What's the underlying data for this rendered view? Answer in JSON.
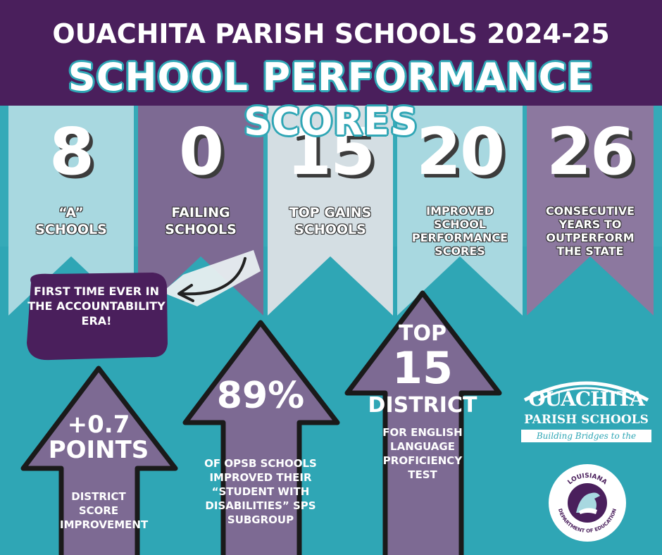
{
  "header": {
    "line1": "OUACHITA PARISH SCHOOLS 2024-25",
    "line2": "SCHOOL PERFORMANCE SCORES"
  },
  "banners": [
    {
      "number": "8",
      "label": "“A” SCHOOLS",
      "color": "#a8d8e0"
    },
    {
      "number": "0",
      "label": "FAILING SCHOOLS",
      "color": "#7d6a93"
    },
    {
      "number": "15",
      "label": "TOP GAINS SCHOOLS",
      "color": "#d4dee3"
    },
    {
      "number": "20",
      "label": "IMPROVED SCHOOL PERFORMANCE SCORES",
      "color": "#a8d8e0"
    },
    {
      "number": "26",
      "label": "CONSECUTIVE YEARS TO OUTPERFORM THE STATE",
      "color": "#8c789f"
    }
  ],
  "note": {
    "text": "FIRST TIME EVER IN THE ACCOUNTABILITY ERA!"
  },
  "arrows": [
    {
      "headline": "+0.7",
      "headline2": "POINTS",
      "caption": "DISTRICT SCORE IMPROVEMENT"
    },
    {
      "headline": "89%",
      "caption": "OF OPSB SCHOOLS IMPROVED THEIR “STUDENT WITH DISABILITIES” SPS SUBGROUP"
    },
    {
      "headline": "TOP",
      "headline2": "15",
      "headline3": "DISTRICT",
      "caption": "FOR ENGLISH LANGUAGE PROFICIENCY TEST"
    }
  ],
  "logo": {
    "name": "OUACHITA",
    "sub": "PARISH SCHOOLS",
    "tagline": "Building Bridges to the Future"
  },
  "seal": {
    "top": "LOUISIANA",
    "bottom": "DEPARTMENT OF EDUCATION"
  },
  "colors": {
    "purple_dark": "#4a1f5c",
    "teal": "#2fa6b5",
    "arrow_purple": "#7d6a93"
  }
}
